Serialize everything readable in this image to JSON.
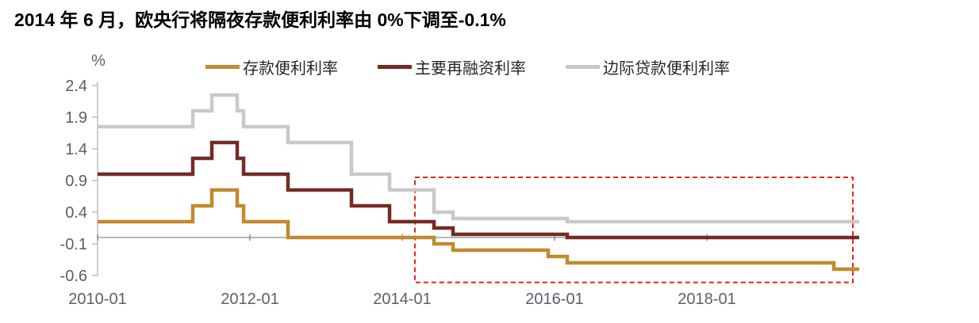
{
  "chart_data": {
    "type": "line",
    "step": "after",
    "title": "2014 年 6 月，欧央行将隔夜存款便利利率由 0%下调至-0.1%",
    "ylabel": "%",
    "x_start": "2010-01",
    "x_end": "2020-01",
    "x_ticks": [
      "2010-01",
      "2012-01",
      "2014-01",
      "2016-01",
      "2018-01"
    ],
    "y_ticks": [
      2.4,
      1.9,
      1.4,
      0.9,
      0.4,
      -0.1,
      -0.6
    ],
    "ylim": [
      -0.6,
      2.4
    ],
    "grid": false,
    "legend_position": "top",
    "series": [
      {
        "name": "存款便利利率",
        "color": "#C18A2F",
        "points": [
          [
            "2010-01",
            0.25
          ],
          [
            "2011-04",
            0.5
          ],
          [
            "2011-07",
            0.75
          ],
          [
            "2011-11",
            0.5
          ],
          [
            "2011-12",
            0.25
          ],
          [
            "2012-07",
            0.0
          ],
          [
            "2014-06",
            -0.1
          ],
          [
            "2014-09",
            -0.2
          ],
          [
            "2015-12",
            -0.3
          ],
          [
            "2016-03",
            -0.4
          ],
          [
            "2019-09",
            -0.5
          ]
        ]
      },
      {
        "name": "主要再融资利率",
        "color": "#752B25",
        "points": [
          [
            "2010-01",
            1.0
          ],
          [
            "2011-04",
            1.25
          ],
          [
            "2011-07",
            1.5
          ],
          [
            "2011-11",
            1.25
          ],
          [
            "2011-12",
            1.0
          ],
          [
            "2012-07",
            0.75
          ],
          [
            "2013-05",
            0.5
          ],
          [
            "2013-11",
            0.25
          ],
          [
            "2014-06",
            0.15
          ],
          [
            "2014-09",
            0.05
          ],
          [
            "2016-03",
            0.0
          ]
        ]
      },
      {
        "name": "边际贷款便利利率",
        "color": "#C9C9C9",
        "points": [
          [
            "2010-01",
            1.75
          ],
          [
            "2011-04",
            2.0
          ],
          [
            "2011-07",
            2.25
          ],
          [
            "2011-11",
            2.0
          ],
          [
            "2011-12",
            1.75
          ],
          [
            "2012-07",
            1.5
          ],
          [
            "2013-05",
            1.0
          ],
          [
            "2013-11",
            0.75
          ],
          [
            "2014-06",
            0.4
          ],
          [
            "2014-09",
            0.3
          ],
          [
            "2016-03",
            0.25
          ]
        ]
      }
    ],
    "highlight_box": {
      "x_start": "2014-03",
      "x_end": "2019-12",
      "y_top": 0.95,
      "y_bottom": -0.71,
      "color": "#E6261C",
      "style": "dashed"
    },
    "colors": {
      "axis_line": "#BDBDBD",
      "zero_line": "#9E9E9E",
      "tick_mark": "#8C8C8C",
      "tick_text": "#595f69"
    }
  }
}
